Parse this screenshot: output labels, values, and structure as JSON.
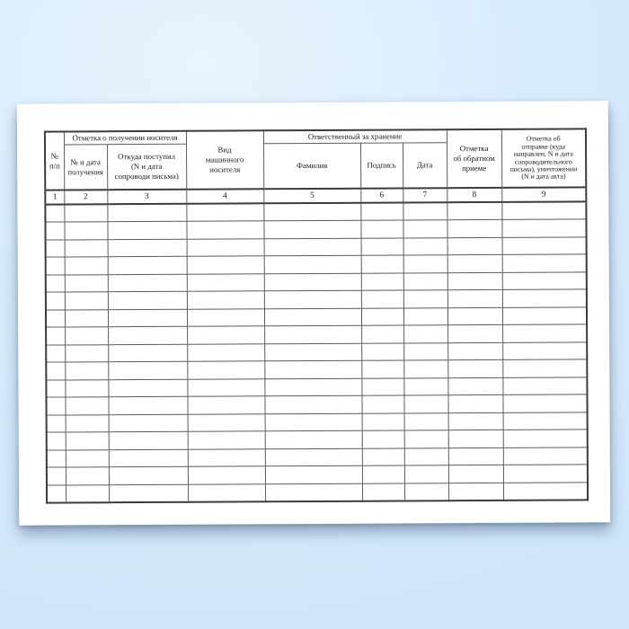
{
  "background": {
    "highlight_color": "#e8f4fe",
    "main_color": "#d7ebfc",
    "edge_color": "#cfe6fa"
  },
  "paper": {
    "color": "#ffffff"
  },
  "table": {
    "outer_border_color": "#3b3b3b",
    "grid_color": "#5c5c5c",
    "group_headers": [
      {
        "label": "Отметка о получении носителя"
      },
      {
        "label": "Ответственный за хранение"
      }
    ],
    "columns": [
      {
        "number": "1",
        "label": "№\nп/п"
      },
      {
        "number": "2",
        "label": "№ и дата\nполучения"
      },
      {
        "number": "3",
        "label": "Откуда поступил\n(N и дата\nсопроводи письма)"
      },
      {
        "number": "4",
        "label": "Вид\nмашинного\nносителя"
      },
      {
        "number": "5",
        "label": "Фамилия"
      },
      {
        "number": "6",
        "label": "Подпись"
      },
      {
        "number": "7",
        "label": "Дата"
      },
      {
        "number": "8",
        "label": "Отметка\nоб обратном\nприеме"
      },
      {
        "number": "9",
        "label": "Отметка об\nотправке (куда\nнаправлен, N и дата\nсопроводительного\nписьма), уничтожении\n(N и дата акта)"
      }
    ],
    "body": {
      "row_count": 17,
      "cells_per_row": 9,
      "cell_value": ""
    }
  }
}
